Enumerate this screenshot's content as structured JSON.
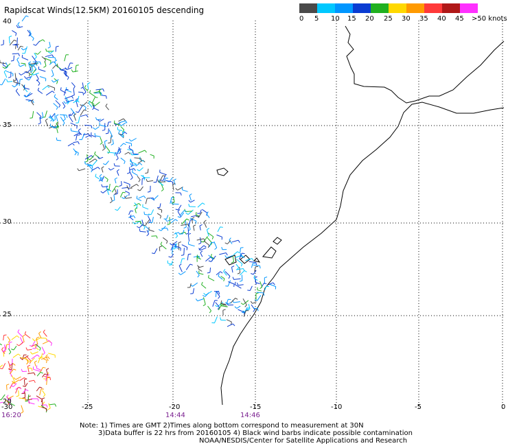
{
  "title": "Rapidscat Winds(12.5KM) 20160105 descending",
  "colorbar": {
    "labels": [
      "0",
      "5",
      "10",
      "15",
      "20",
      "25",
      "30",
      "35",
      "40",
      "45",
      ">50 knots"
    ],
    "colors": [
      "#4a4a4a",
      "#00c8ff",
      "#0096ff",
      "#0a3cd2",
      "#20b020",
      "#ffd800",
      "#ff9a00",
      "#ff3a3a",
      "#b01818",
      "#ff30ff",
      "#7a1cd0"
    ]
  },
  "y_axis_labels": [
    "40",
    "35",
    "30",
    "25",
    "20"
  ],
  "x_axis_labels": [
    "-30",
    "-25",
    "-20",
    "-15",
    "-10",
    "-5",
    "0"
  ],
  "time_labels": [
    "16:20",
    "14:44",
    "14:46"
  ],
  "footnotes": [
    "Note: 1) Times are GMT 2)Times along bottom correspond to measurement at 30N",
    "3)Data buffer is 22 hrs from 20160105 4) Black wind barbs indicate possible contamination",
    "NOAA/NESDIS/Center for Satellite Applications and Research"
  ]
}
